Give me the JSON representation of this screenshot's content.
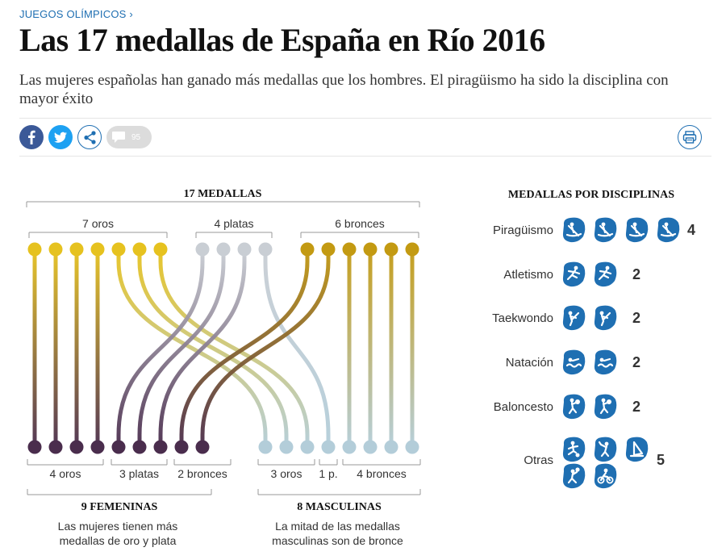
{
  "header": {
    "kicker": "JUEGOS OLÍMPICOS",
    "kicker_arrow": "›",
    "title": "Las 17 medallas de España en Río 2016",
    "subtitle": "Las mujeres españolas han ganado más medallas que los hombres. El piragüismo ha sido la disciplina con mayor éxito"
  },
  "social": {
    "comments_count": "95",
    "facebook_icon": "facebook-icon",
    "twitter_icon": "twitter-icon",
    "share_icon": "share-icon",
    "comment_icon": "comment-icon",
    "print_icon": "print-icon"
  },
  "colors": {
    "gold": "#e6c21f",
    "silver": "#c9ced4",
    "bronze": "#c39a12",
    "female": "#4a2d4d",
    "male": "#b3cdd9",
    "icon_blue": "#1f6fb2"
  },
  "chart_data": [
    {
      "type": "sankey",
      "title": "17 MEDALLAS",
      "top_groups": [
        {
          "label": "7 oros",
          "medal": "gold",
          "count": 7
        },
        {
          "label": "4 platas",
          "medal": "silver",
          "count": 4
        },
        {
          "label": "6 bronces",
          "medal": "bronze",
          "count": 6
        }
      ],
      "bottom_groups": [
        {
          "label": "4 oros",
          "gender": "female",
          "medal": "gold",
          "count": 4
        },
        {
          "label": "3 platas",
          "gender": "female",
          "medal": "silver",
          "count": 3
        },
        {
          "label": "2 bronces",
          "gender": "female",
          "medal": "bronze",
          "count": 2
        },
        {
          "label": "3 oros",
          "gender": "male",
          "medal": "gold",
          "count": 3
        },
        {
          "label": "1 p.",
          "gender": "male",
          "medal": "silver",
          "count": 1
        },
        {
          "label": "4 bronces",
          "gender": "male",
          "medal": "bronze",
          "count": 4
        }
      ],
      "top_order": [
        "gold",
        "gold",
        "gold",
        "gold",
        "gold",
        "gold",
        "gold",
        "silver",
        "silver",
        "silver",
        "silver",
        "bronze",
        "bronze",
        "bronze",
        "bronze",
        "bronze",
        "bronze"
      ],
      "bottom_order": [
        "female",
        "female",
        "female",
        "female",
        "female",
        "female",
        "female",
        "female",
        "female",
        "male",
        "male",
        "male",
        "male",
        "male",
        "male",
        "male",
        "male"
      ],
      "links": [
        0,
        1,
        2,
        3,
        9,
        10,
        11,
        4,
        5,
        6,
        12,
        7,
        8,
        13,
        14,
        15,
        16
      ],
      "genders": [
        {
          "title": "9 FEMENINAS",
          "count": 9,
          "note_lines": [
            "Las mujeres tienen más",
            "medallas de oro y plata"
          ]
        },
        {
          "title": "8 MASCULINAS",
          "count": 8,
          "note_lines": [
            "La mitad de las medallas",
            "masculinas son de bronce"
          ]
        }
      ]
    },
    {
      "type": "pictogram",
      "title": "MEDALLAS POR DISCIPLINAS",
      "rows": [
        {
          "label": "Piragüismo",
          "value": 4,
          "icons": [
            "canoe-icon",
            "canoe-icon",
            "canoe-icon",
            "canoe-icon"
          ]
        },
        {
          "label": "Atletismo",
          "value": 2,
          "icons": [
            "athletics-icon",
            "athletics-icon"
          ]
        },
        {
          "label": "Taekwondo",
          "value": 2,
          "icons": [
            "taekwondo-icon",
            "taekwondo-icon"
          ]
        },
        {
          "label": "Natación",
          "value": 2,
          "icons": [
            "swimming-icon",
            "swimming-icon"
          ]
        },
        {
          "label": "Baloncesto",
          "value": 2,
          "icons": [
            "basketball-icon",
            "basketball-icon"
          ]
        },
        {
          "label": "Otras",
          "value": 5,
          "icons": [
            "football-icon",
            "badminton-icon",
            "sailing-icon",
            "volleyball-icon",
            "cycling-icon"
          ]
        }
      ]
    }
  ]
}
